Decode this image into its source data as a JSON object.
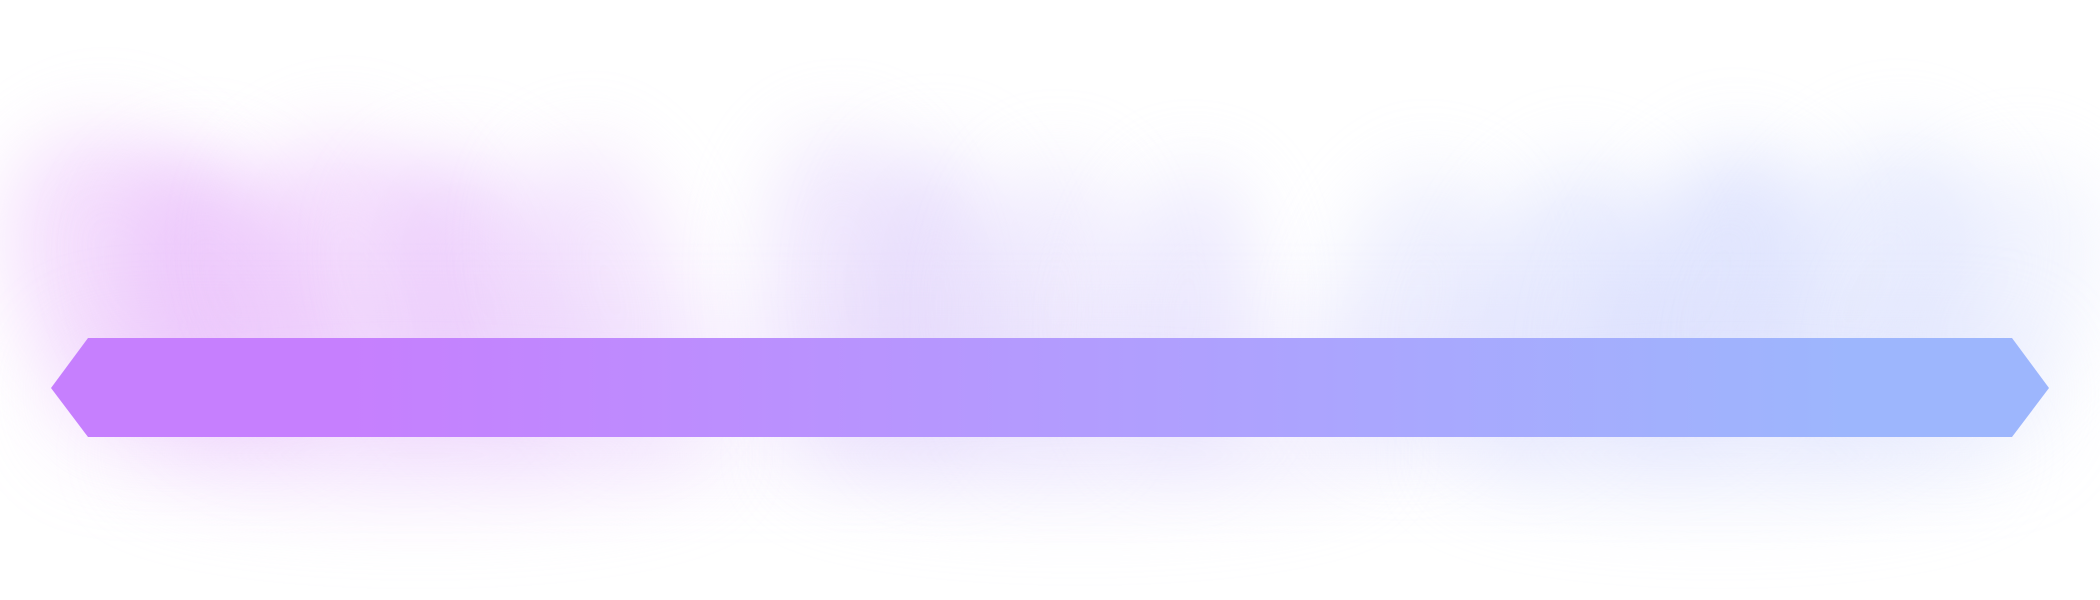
{
  "banner": {
    "gradient_start": "#c67ffe",
    "gradient_mid": "#b39bfe",
    "gradient_end": "#9db6fd",
    "glow_left": "#e5b9fb",
    "glow_right": "#c9d3fc"
  }
}
